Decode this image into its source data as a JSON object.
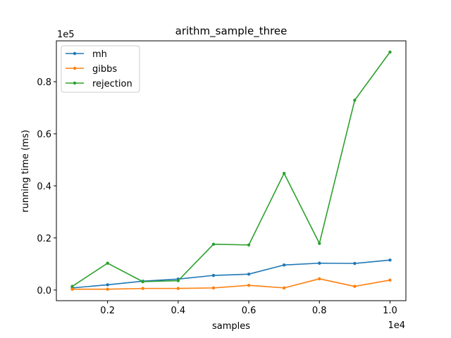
{
  "chart_data": {
    "type": "line",
    "title": "arithm_sample_three",
    "xlabel": "samples",
    "ylabel": "running time (ms)",
    "x_offset_text": "1e4",
    "y_offset_text": "1e5",
    "x": [
      1000,
      2000,
      3000,
      4000,
      5000,
      6000,
      7000,
      8000,
      9000,
      10000
    ],
    "xlim": [
      550,
      10450
    ],
    "ylim": [
      -4100,
      95700
    ],
    "x_ticks": [
      2000,
      4000,
      6000,
      8000,
      10000
    ],
    "x_tick_labels": [
      "0.2",
      "0.4",
      "0.6",
      "0.8",
      "1.0"
    ],
    "y_ticks": [
      0,
      20000,
      40000,
      60000,
      80000
    ],
    "y_tick_labels": [
      "0.0",
      "0.2",
      "0.4",
      "0.6",
      "0.8"
    ],
    "grid": false,
    "legend_position": "top-left",
    "series": [
      {
        "name": "mh",
        "color": "#1f77b4",
        "values": [
          800,
          2000,
          3400,
          4200,
          5600,
          6100,
          9600,
          10300,
          10200,
          11500
        ]
      },
      {
        "name": "gibbs",
        "color": "#ff7f0e",
        "values": [
          300,
          300,
          600,
          600,
          800,
          1800,
          800,
          4300,
          1400,
          3800
        ]
      },
      {
        "name": "rejection",
        "color": "#2ca02c",
        "values": [
          1400,
          10300,
          3200,
          3600,
          17600,
          17300,
          44800,
          17900,
          72900,
          91400
        ]
      }
    ]
  }
}
